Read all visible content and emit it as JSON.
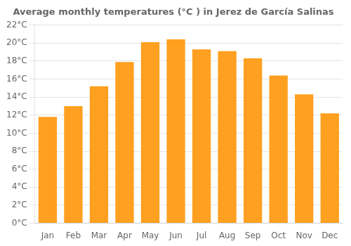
{
  "chart_data": {
    "type": "bar",
    "title": "Average monthly temperatures (°C ) in Jerez de García Salinas",
    "categories": [
      "Jan",
      "Feb",
      "Mar",
      "Apr",
      "May",
      "Jun",
      "Jul",
      "Aug",
      "Sep",
      "Oct",
      "Nov",
      "Dec"
    ],
    "values": [
      11.8,
      13.0,
      15.2,
      17.9,
      20.1,
      20.4,
      19.3,
      19.1,
      18.3,
      16.4,
      14.3,
      12.2
    ],
    "color": "#FFA020",
    "ylim": [
      0,
      22
    ],
    "yticks": [
      {
        "value": 0,
        "label": "0°C"
      },
      {
        "value": 2,
        "label": "2°C"
      },
      {
        "value": 4,
        "label": "4°C"
      },
      {
        "value": 6,
        "label": "6°C"
      },
      {
        "value": 8,
        "label": "8°C"
      },
      {
        "value": 10,
        "label": "10°C"
      },
      {
        "value": 12,
        "label": "12°C"
      },
      {
        "value": 14,
        "label": "14°C"
      },
      {
        "value": 16,
        "label": "16°C"
      },
      {
        "value": 18,
        "label": "18°C"
      },
      {
        "value": 20,
        "label": "20°C"
      },
      {
        "value": 22,
        "label": "22°C"
      }
    ],
    "grid": true
  }
}
